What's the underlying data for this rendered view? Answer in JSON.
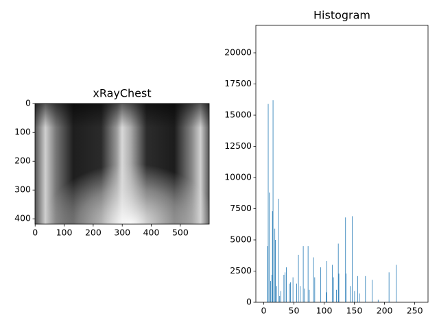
{
  "chart_data": [
    {
      "type": "image",
      "title": "xRayChest",
      "xlim": [
        -0.5,
        599.5
      ],
      "xticks": [
        0,
        100,
        200,
        300,
        400,
        500
      ],
      "ylim": [
        418.5,
        -0.5
      ],
      "yticks": [
        0,
        100,
        200,
        300,
        400
      ]
    },
    {
      "type": "histogram",
      "title": "Histogram",
      "color": "#1f77b4",
      "xlim": [
        -13,
        272
      ],
      "xticks": [
        0,
        50,
        100,
        150,
        200,
        250
      ],
      "ylim": [
        0,
        22200
      ],
      "yticks": [
        0,
        2500,
        5000,
        7500,
        10000,
        12500,
        15000,
        17500,
        20000
      ],
      "bins": [
        0,
        1,
        2,
        3,
        4,
        5,
        6,
        7,
        8,
        9,
        10,
        11,
        12,
        13,
        14,
        15,
        16,
        17,
        18,
        19,
        20,
        21,
        22,
        23,
        24,
        25,
        26,
        27,
        28,
        29,
        30,
        31,
        32,
        33,
        34,
        35,
        36,
        37,
        38,
        39,
        40,
        41,
        42,
        43,
        44,
        45,
        46,
        47,
        48,
        49,
        50,
        51,
        52,
        53,
        54,
        55,
        56,
        57,
        58,
        59,
        60,
        61,
        62,
        63,
        64,
        65,
        66,
        67,
        68,
        69,
        70,
        71,
        72,
        73,
        74,
        75,
        76,
        77,
        78,
        79,
        80,
        81,
        82,
        83,
        84,
        85,
        86,
        87,
        88,
        89,
        90,
        91,
        92,
        93,
        94,
        95,
        96,
        97,
        98,
        99,
        100,
        101,
        102,
        103,
        104,
        105,
        106,
        107,
        108,
        109,
        110,
        111,
        112,
        113,
        114,
        115,
        116,
        117,
        118,
        119,
        120,
        121,
        122,
        123,
        124,
        125,
        126,
        127,
        128,
        129,
        130,
        131,
        132,
        133,
        134,
        135,
        136,
        137,
        138,
        139,
        140,
        141,
        142,
        143,
        144,
        145,
        146,
        147,
        148,
        149,
        150,
        151,
        152,
        153,
        154,
        155,
        156,
        157,
        158,
        159,
        160,
        161,
        162,
        163,
        164,
        165,
        166,
        167,
        168,
        169,
        170,
        171,
        172,
        173,
        174,
        175,
        176,
        177,
        178,
        179,
        180,
        181,
        182,
        183,
        184,
        185,
        186,
        187,
        188,
        189,
        190,
        191,
        192,
        193,
        194,
        195,
        196,
        197,
        198,
        199,
        200,
        201,
        202,
        203,
        204,
        205,
        206,
        207,
        208,
        209,
        210,
        211,
        212,
        213,
        214,
        215,
        216,
        217,
        218,
        219,
        220,
        221,
        222,
        223,
        224,
        225,
        226,
        227,
        228,
        229,
        230,
        231,
        232,
        233,
        234,
        235,
        236,
        237,
        238,
        239,
        240,
        241,
        242,
        243,
        244,
        245,
        246,
        247,
        248,
        249,
        250,
        251,
        252,
        253,
        254,
        255,
        256
      ],
      "values": [
        0,
        0,
        0,
        0,
        0,
        0,
        4500,
        15900,
        0,
        8800,
        0,
        1700,
        0,
        2200,
        7300,
        16200,
        0,
        0,
        5900,
        5000,
        0,
        1300,
        0,
        0,
        8300,
        0,
        500,
        0,
        900,
        0,
        0,
        0,
        0,
        2200,
        0,
        2400,
        0,
        2800,
        0,
        0,
        0,
        0,
        1500,
        0,
        1600,
        0,
        0,
        0,
        2000,
        0,
        0,
        0,
        0,
        0,
        1500,
        0,
        0,
        3800,
        0,
        0,
        1300,
        0,
        0,
        0,
        0,
        4500,
        0,
        1100,
        0,
        0,
        0,
        0,
        0,
        4500,
        0,
        1000,
        0,
        0,
        0,
        0,
        0,
        0,
        3600,
        0,
        2000,
        0,
        0,
        0,
        0,
        0,
        0,
        0,
        0,
        0,
        2800,
        0,
        0,
        0,
        0,
        0,
        0,
        0,
        0,
        800,
        3300,
        0,
        0,
        0,
        0,
        0,
        0,
        0,
        0,
        3000,
        0,
        2000,
        0,
        0,
        0,
        0,
        1000,
        0,
        0,
        4700,
        2300,
        0,
        0,
        0,
        0,
        0,
        0,
        0,
        0,
        0,
        0,
        6800,
        2300,
        0,
        0,
        0,
        0,
        0,
        0,
        1300,
        0,
        0,
        6900,
        0,
        0,
        0,
        900,
        0,
        0,
        0,
        0,
        2100,
        0,
        0,
        700,
        0,
        0,
        0,
        0,
        0,
        0,
        0,
        0,
        0,
        2100,
        0,
        0,
        0,
        0,
        0,
        0,
        0,
        0,
        0,
        0,
        1800,
        0,
        0,
        0,
        0,
        0,
        0,
        0,
        0,
        0,
        200,
        0,
        0,
        0,
        0,
        0,
        0,
        0,
        0,
        0,
        0,
        0,
        0,
        0,
        0,
        0,
        0,
        0,
        2400,
        0,
        0,
        0,
        0,
        0,
        0,
        0,
        0,
        0,
        0,
        0,
        3000,
        0,
        0,
        0,
        0,
        0,
        0,
        0,
        0,
        0,
        0,
        0,
        0,
        0,
        0,
        0,
        0,
        0,
        0,
        0,
        0,
        0,
        0,
        0,
        0,
        0,
        0,
        0,
        0,
        0,
        0,
        0,
        0,
        0,
        0,
        0,
        0
      ]
    }
  ]
}
